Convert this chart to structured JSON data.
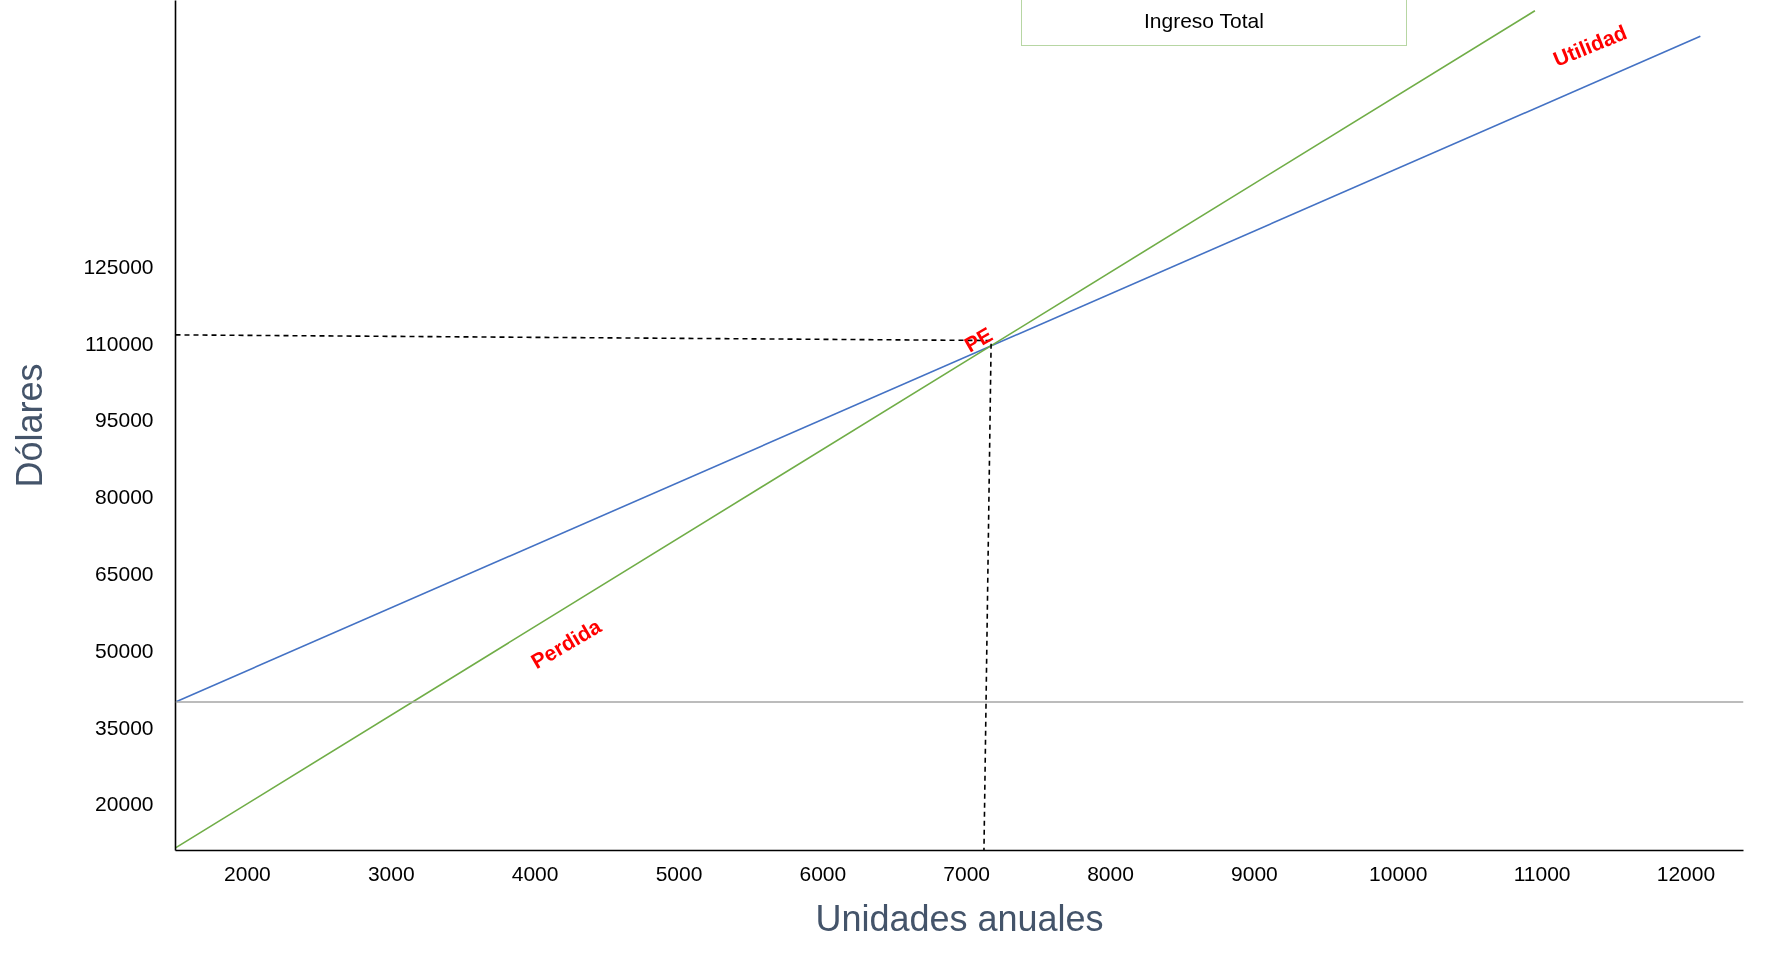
{
  "chart_data": {
    "type": "line",
    "xlabel": "Unidades anuales",
    "ylabel": "Dólares",
    "xlim": [
      1500,
      12400
    ],
    "ylim": [
      11000,
      177000
    ],
    "xticks": [
      2000,
      3000,
      4000,
      5000,
      6000,
      7000,
      8000,
      9000,
      10000,
      11000,
      12000
    ],
    "yticks": [
      20000,
      35000,
      50000,
      65000,
      80000,
      95000,
      110000,
      125000
    ],
    "grid": false,
    "legend": "top",
    "series": [
      {
        "color": "#4472c4",
        "x": [
          1500,
          12100
        ],
        "values": [
          40000,
          170000
        ]
      },
      {
        "name": "Ingreso Total",
        "color": "#70ad47",
        "x": [
          1500,
          10950
        ],
        "values": [
          11500,
          175000
        ]
      },
      {
        "color": "#000000",
        "x": [
          1500,
          7170,
          7120
        ],
        "values": [
          111700,
          110600,
          11000
        ],
        "line_style": "dashed"
      }
    ],
    "ref_lines": [
      {
        "axis": "y",
        "value": 40000,
        "color": "#a6a6a6"
      }
    ],
    "annotations": [
      {
        "text": "PE",
        "x": 7080,
        "y": 110800
      },
      "Perdida",
      "Utilidad"
    ]
  }
}
